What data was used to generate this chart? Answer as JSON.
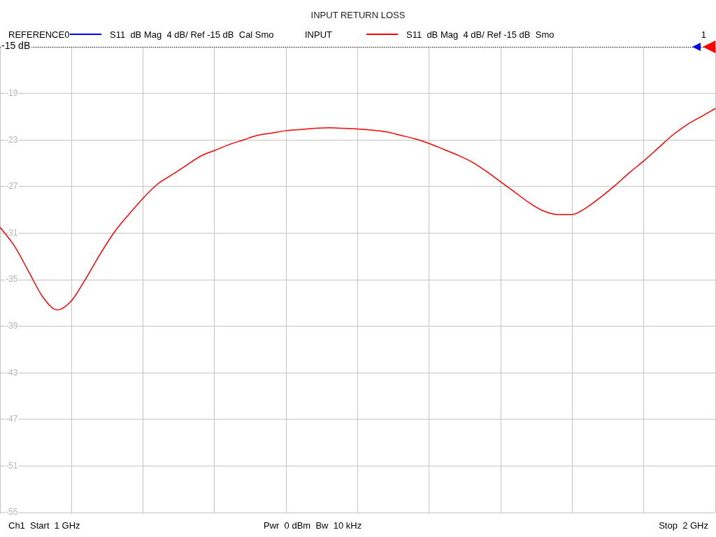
{
  "chart_data": {
    "type": "line",
    "title": "INPUT RETURN LOSS",
    "categories": [
      null,
      null,
      null,
      null,
      null,
      null,
      null,
      null,
      null,
      null,
      null,
      null,
      null,
      null,
      null,
      null,
      null,
      null,
      null,
      null,
      null,
      null,
      null,
      null,
      null,
      null,
      null,
      null,
      null,
      null,
      null,
      null,
      null,
      null,
      null,
      null,
      null,
      null,
      null,
      null,
      null,
      null,
      null,
      null,
      null,
      null,
      null,
      null,
      null,
      null,
      null
    ],
    "series": [
      {
        "name": "S11  dB Mag  4 dB/ Ref -15 dB  Cal Smo",
        "color": "#0000ff",
        "values": [
          null,
          null,
          null,
          null,
          null,
          null,
          null,
          null,
          null,
          null,
          null,
          null,
          null,
          null,
          null,
          null,
          null,
          null,
          null,
          null,
          null,
          null,
          null,
          null,
          null,
          null,
          null,
          null,
          null,
          null,
          null,
          null,
          null,
          null,
          null,
          null,
          null,
          null,
          null,
          null,
          null,
          null,
          null,
          null,
          null,
          null,
          null,
          null,
          null,
          null,
          null
        ]
      },
      {
        "name": "S11  dB Mag  4 dB/ Ref -15 dB  Smo",
        "color": "#ff0000",
        "values": [
          -30.5,
          -32.1,
          -34.3,
          -36.5,
          -37.6,
          -36.8,
          -34.9,
          -32.8,
          -30.9,
          -29.4,
          -28.0,
          -26.8,
          -26.0,
          -25.2,
          -24.4,
          -23.9,
          -23.4,
          -23.0,
          -22.6,
          -22.4,
          -22.2,
          -22.1,
          -22.0,
          -21.95,
          -22.0,
          -22.05,
          -22.15,
          -22.3,
          -22.6,
          -22.9,
          -23.3,
          -23.8,
          -24.3,
          -24.9,
          -25.7,
          -26.6,
          -27.5,
          -28.4,
          -29.1,
          -29.4,
          -29.4,
          -28.8,
          -27.9,
          -26.9,
          -25.8,
          -24.8,
          -23.7,
          -22.6,
          -21.7,
          -21.0,
          -20.3
        ]
      }
    ],
    "ylim": [
      -55,
      -15
    ],
    "yticks": [
      {
        "value": -15,
        "label": null
      },
      -19,
      -23,
      -27,
      -31,
      -35,
      -39,
      -43,
      -47,
      -51,
      -55
    ],
    "ref_lines": [
      {
        "axis": "y",
        "value": -15,
        "label": "-15 dB",
        "color": "#000000",
        "line_style": "dotted"
      }
    ],
    "annotations": [
      "REFERENCE0",
      "INPUT",
      "1",
      "Ch1  Start  1 GHz",
      "Pwr  0 dBm  Bw  10 kHz",
      "Stop  2 GHz"
    ],
    "grid": true,
    "legend": "top",
    "tick_labels": "y",
    "marker": "none"
  }
}
